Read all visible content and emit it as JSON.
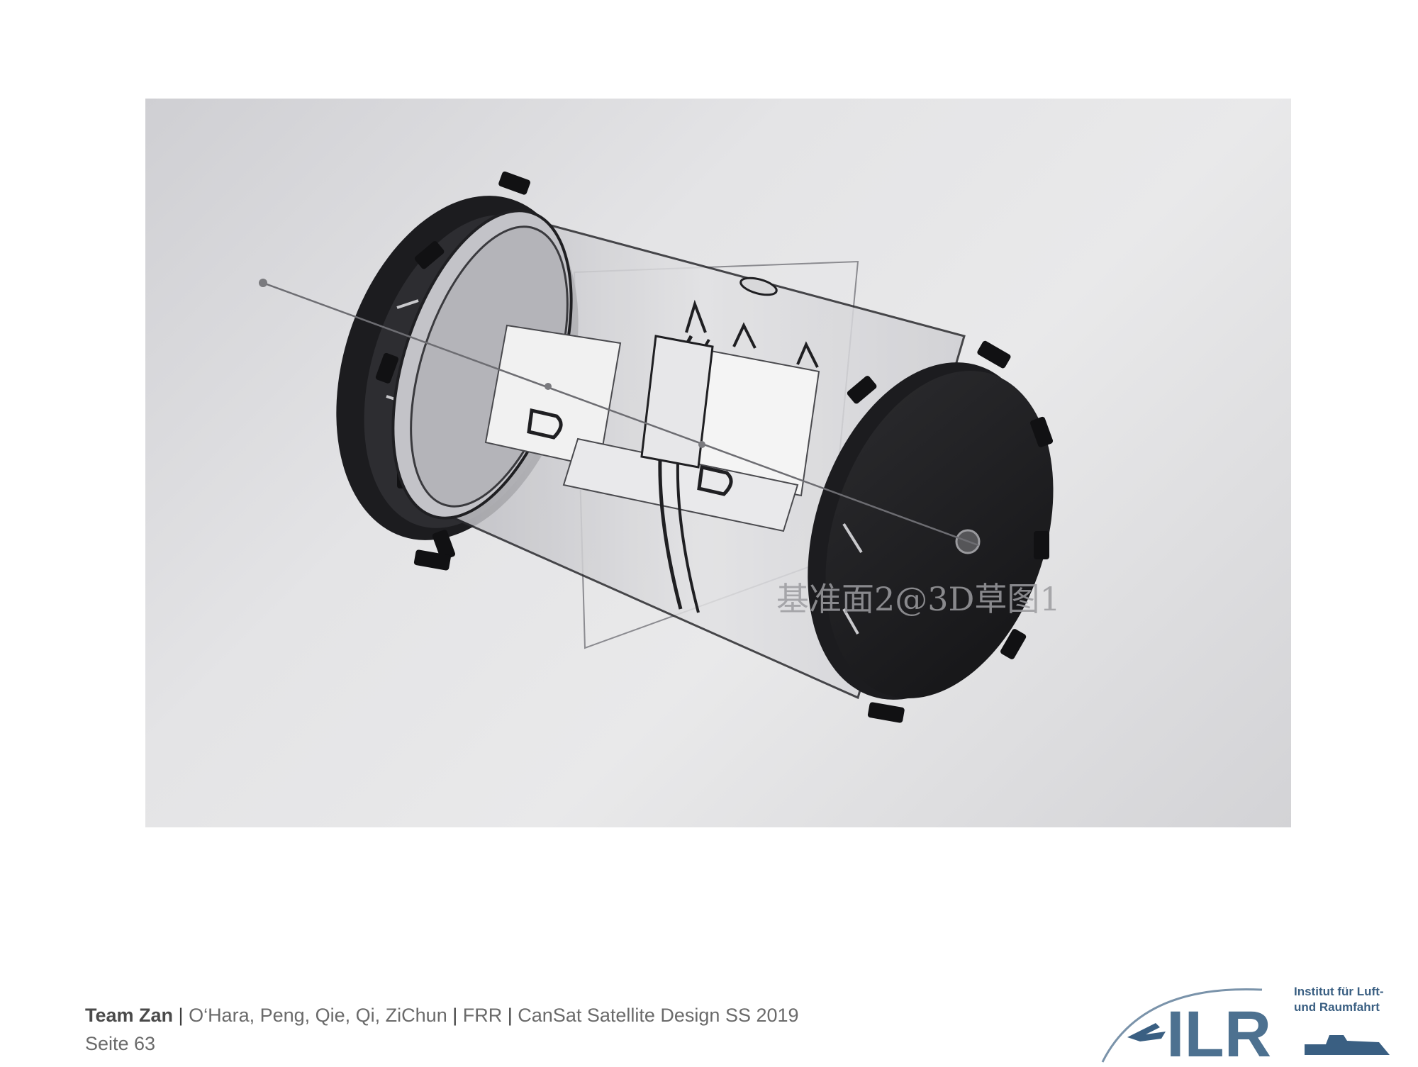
{
  "figure": {
    "caption_overlay": "基准面2@3D草图1"
  },
  "footer": {
    "team": "Team Zan",
    "sep1": " | ",
    "members": "O‘Hara, Peng, Qie, Qi, ZiChun",
    "sep2": " | ",
    "review": "FRR",
    "sep3": " | ",
    "course": "CanSat Satellite Design SS 2019",
    "page": "Seite 63"
  },
  "logo": {
    "letters": "ILR",
    "institute_line1": "Institut für Luft-",
    "institute_line2": "und Raumfahrt"
  },
  "colors": {
    "logo_blue": "#3a5f82",
    "wheel_dark": "#1f1f22"
  }
}
